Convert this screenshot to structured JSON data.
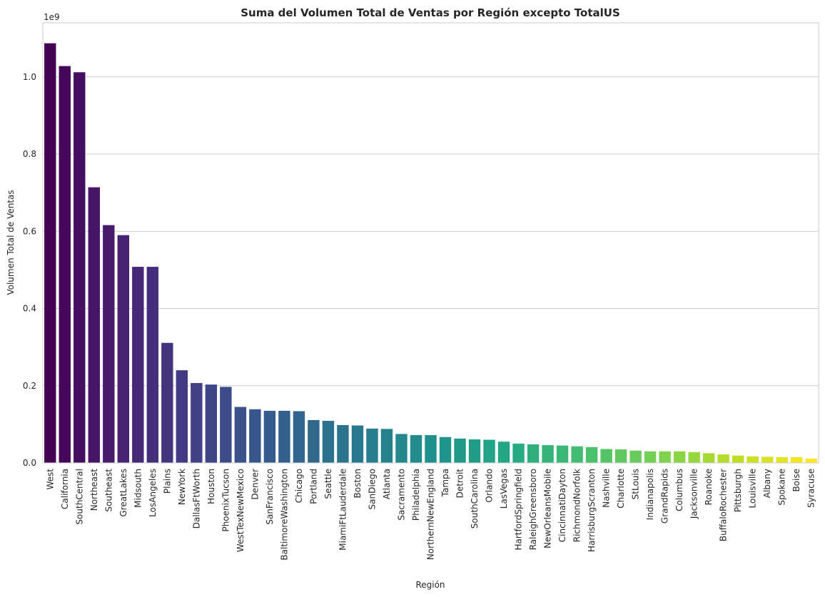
{
  "chart_data": {
    "type": "bar",
    "title": "Suma del Volumen Total de Ventas por Región excepto TotalUS",
    "xlabel": "Región",
    "ylabel": "Volumen Total de Ventas",
    "y_offset_label": "1e9",
    "ylim": [
      0,
      1.14
    ],
    "yticks": [
      0.0,
      0.2,
      0.4,
      0.6,
      0.8,
      1.0
    ],
    "ytick_labels": [
      "0.0",
      "0.2",
      "0.4",
      "0.6",
      "0.8",
      "1.0"
    ],
    "grid": "y",
    "colormap": "viridis",
    "categories": [
      "West",
      "California",
      "SouthCentral",
      "Northeast",
      "Southeast",
      "GreatLakes",
      "Midsouth",
      "LosAngeles",
      "Plains",
      "NewYork",
      "DallasFtWorth",
      "Houston",
      "PhoenixTucson",
      "WestTexNewMexico",
      "Denver",
      "SanFrancisco",
      "BaltimoreWashington",
      "Chicago",
      "Portland",
      "Seattle",
      "MiamiFtLauderdale",
      "Boston",
      "SanDiego",
      "Atlanta",
      "Sacramento",
      "Philadelphia",
      "NorthernNewEngland",
      "Tampa",
      "Detroit",
      "SouthCarolina",
      "Orlando",
      "LasVegas",
      "HartfordSpringfield",
      "RaleighGreensboro",
      "NewOrleansMobile",
      "CincinnatiDayton",
      "RichmondNorfolk",
      "HarrisburgScranton",
      "Nashville",
      "Charlotte",
      "StLouis",
      "Indianapolis",
      "GrandRapids",
      "Columbus",
      "Jacksonville",
      "Roanoke",
      "BuffaloRochester",
      "Pittsburgh",
      "Louisville",
      "Albany",
      "Spokane",
      "Boise",
      "Syracuse"
    ],
    "values": [
      1.087,
      1.028,
      1.012,
      0.714,
      0.616,
      0.59,
      0.508,
      0.508,
      0.311,
      0.24,
      0.207,
      0.203,
      0.197,
      0.145,
      0.139,
      0.135,
      0.135,
      0.134,
      0.111,
      0.109,
      0.098,
      0.097,
      0.089,
      0.088,
      0.075,
      0.072,
      0.072,
      0.067,
      0.063,
      0.061,
      0.06,
      0.055,
      0.05,
      0.048,
      0.046,
      0.045,
      0.043,
      0.041,
      0.036,
      0.035,
      0.032,
      0.03,
      0.03,
      0.03,
      0.028,
      0.025,
      0.022,
      0.019,
      0.017,
      0.016,
      0.015,
      0.015,
      0.011
    ]
  }
}
